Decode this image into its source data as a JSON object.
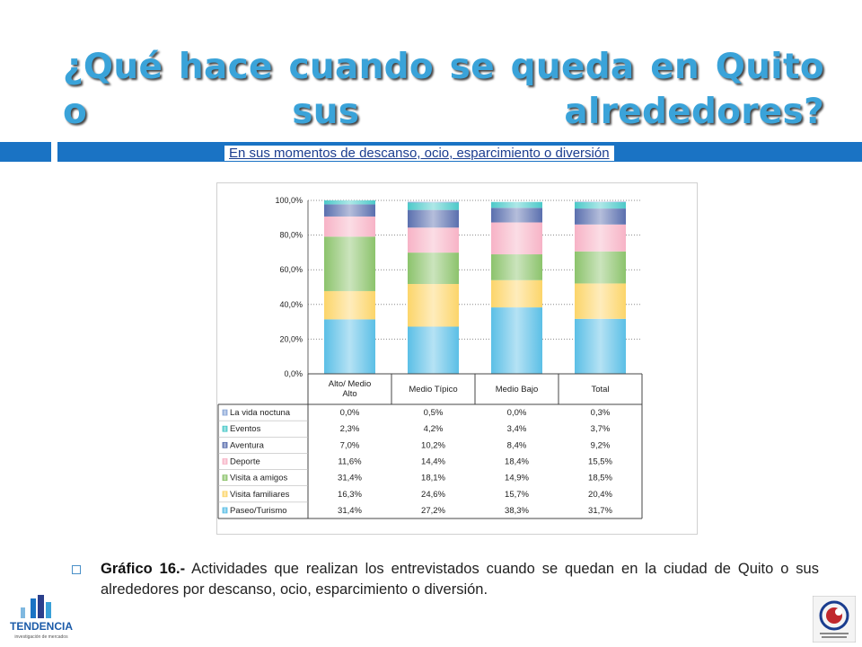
{
  "slide": {
    "title": "¿Qué hace cuando se queda en Quito o sus alrededores?",
    "subtitle": "En sus momentos de descanso, ocio, esparcimiento o diversión",
    "caption_label": "Gráfico 16.-",
    "caption_text": " Actividades que realizan los entrevistados cuando se quedan en la ciudad de Quito o sus alrededores por descanso, ocio, esparcimiento o diversión.",
    "logo_left_text": "TENDENCIA",
    "logo_left_tagline": "investigación de mercados"
  },
  "chart_data": {
    "type": "bar",
    "stacked": true,
    "title": "",
    "xlabel": "",
    "ylabel": "",
    "ylim": [
      0,
      100
    ],
    "yticks": [
      "0,0%",
      "20,0%",
      "40,0%",
      "60,0%",
      "80,0%",
      "100,0%"
    ],
    "grid": true,
    "legend": "data-table",
    "categories": [
      "Alto/ Medio Alto",
      "Medio Típico",
      "Medio Bajo",
      "Total"
    ],
    "series": [
      {
        "name": "Paseo/Turismo",
        "values": [
          31.4,
          27.2,
          38.3,
          31.7
        ],
        "labels": [
          "31,4%",
          "27,2%",
          "38,3%",
          "31,7%"
        ],
        "color": "#5bbfe6"
      },
      {
        "name": "Visita familiares",
        "values": [
          16.3,
          24.6,
          15.7,
          20.4
        ],
        "labels": [
          "16,3%",
          "24,6%",
          "15,7%",
          "20,4%"
        ],
        "color": "#fcd56a"
      },
      {
        "name": "Visita a amigos",
        "values": [
          31.4,
          18.1,
          14.9,
          18.5
        ],
        "labels": [
          "31,4%",
          "18,1%",
          "14,9%",
          "18,5%"
        ],
        "color": "#8cc36c"
      },
      {
        "name": "Deporte",
        "values": [
          11.6,
          14.4,
          18.4,
          15.5
        ],
        "labels": [
          "11,6%",
          "14,4%",
          "18,4%",
          "15,5%"
        ],
        "color": "#f7b3c6"
      },
      {
        "name": "Aventura",
        "values": [
          7.0,
          10.2,
          8.4,
          9.2
        ],
        "labels": [
          "7,0%",
          "10,2%",
          "8,4%",
          "9,2%"
        ],
        "color": "#5a6fae"
      },
      {
        "name": "Eventos",
        "values": [
          2.3,
          4.2,
          3.4,
          3.7
        ],
        "labels": [
          "2,3%",
          "4,2%",
          "3,4%",
          "3,7%"
        ],
        "color": "#4cc9c9"
      },
      {
        "name": "La vida noctuna",
        "values": [
          0.0,
          0.5,
          0.0,
          0.3
        ],
        "labels": [
          "0,0%",
          "0,5%",
          "0,0%",
          "0,3%"
        ],
        "color": "#8aa6d6"
      }
    ]
  }
}
